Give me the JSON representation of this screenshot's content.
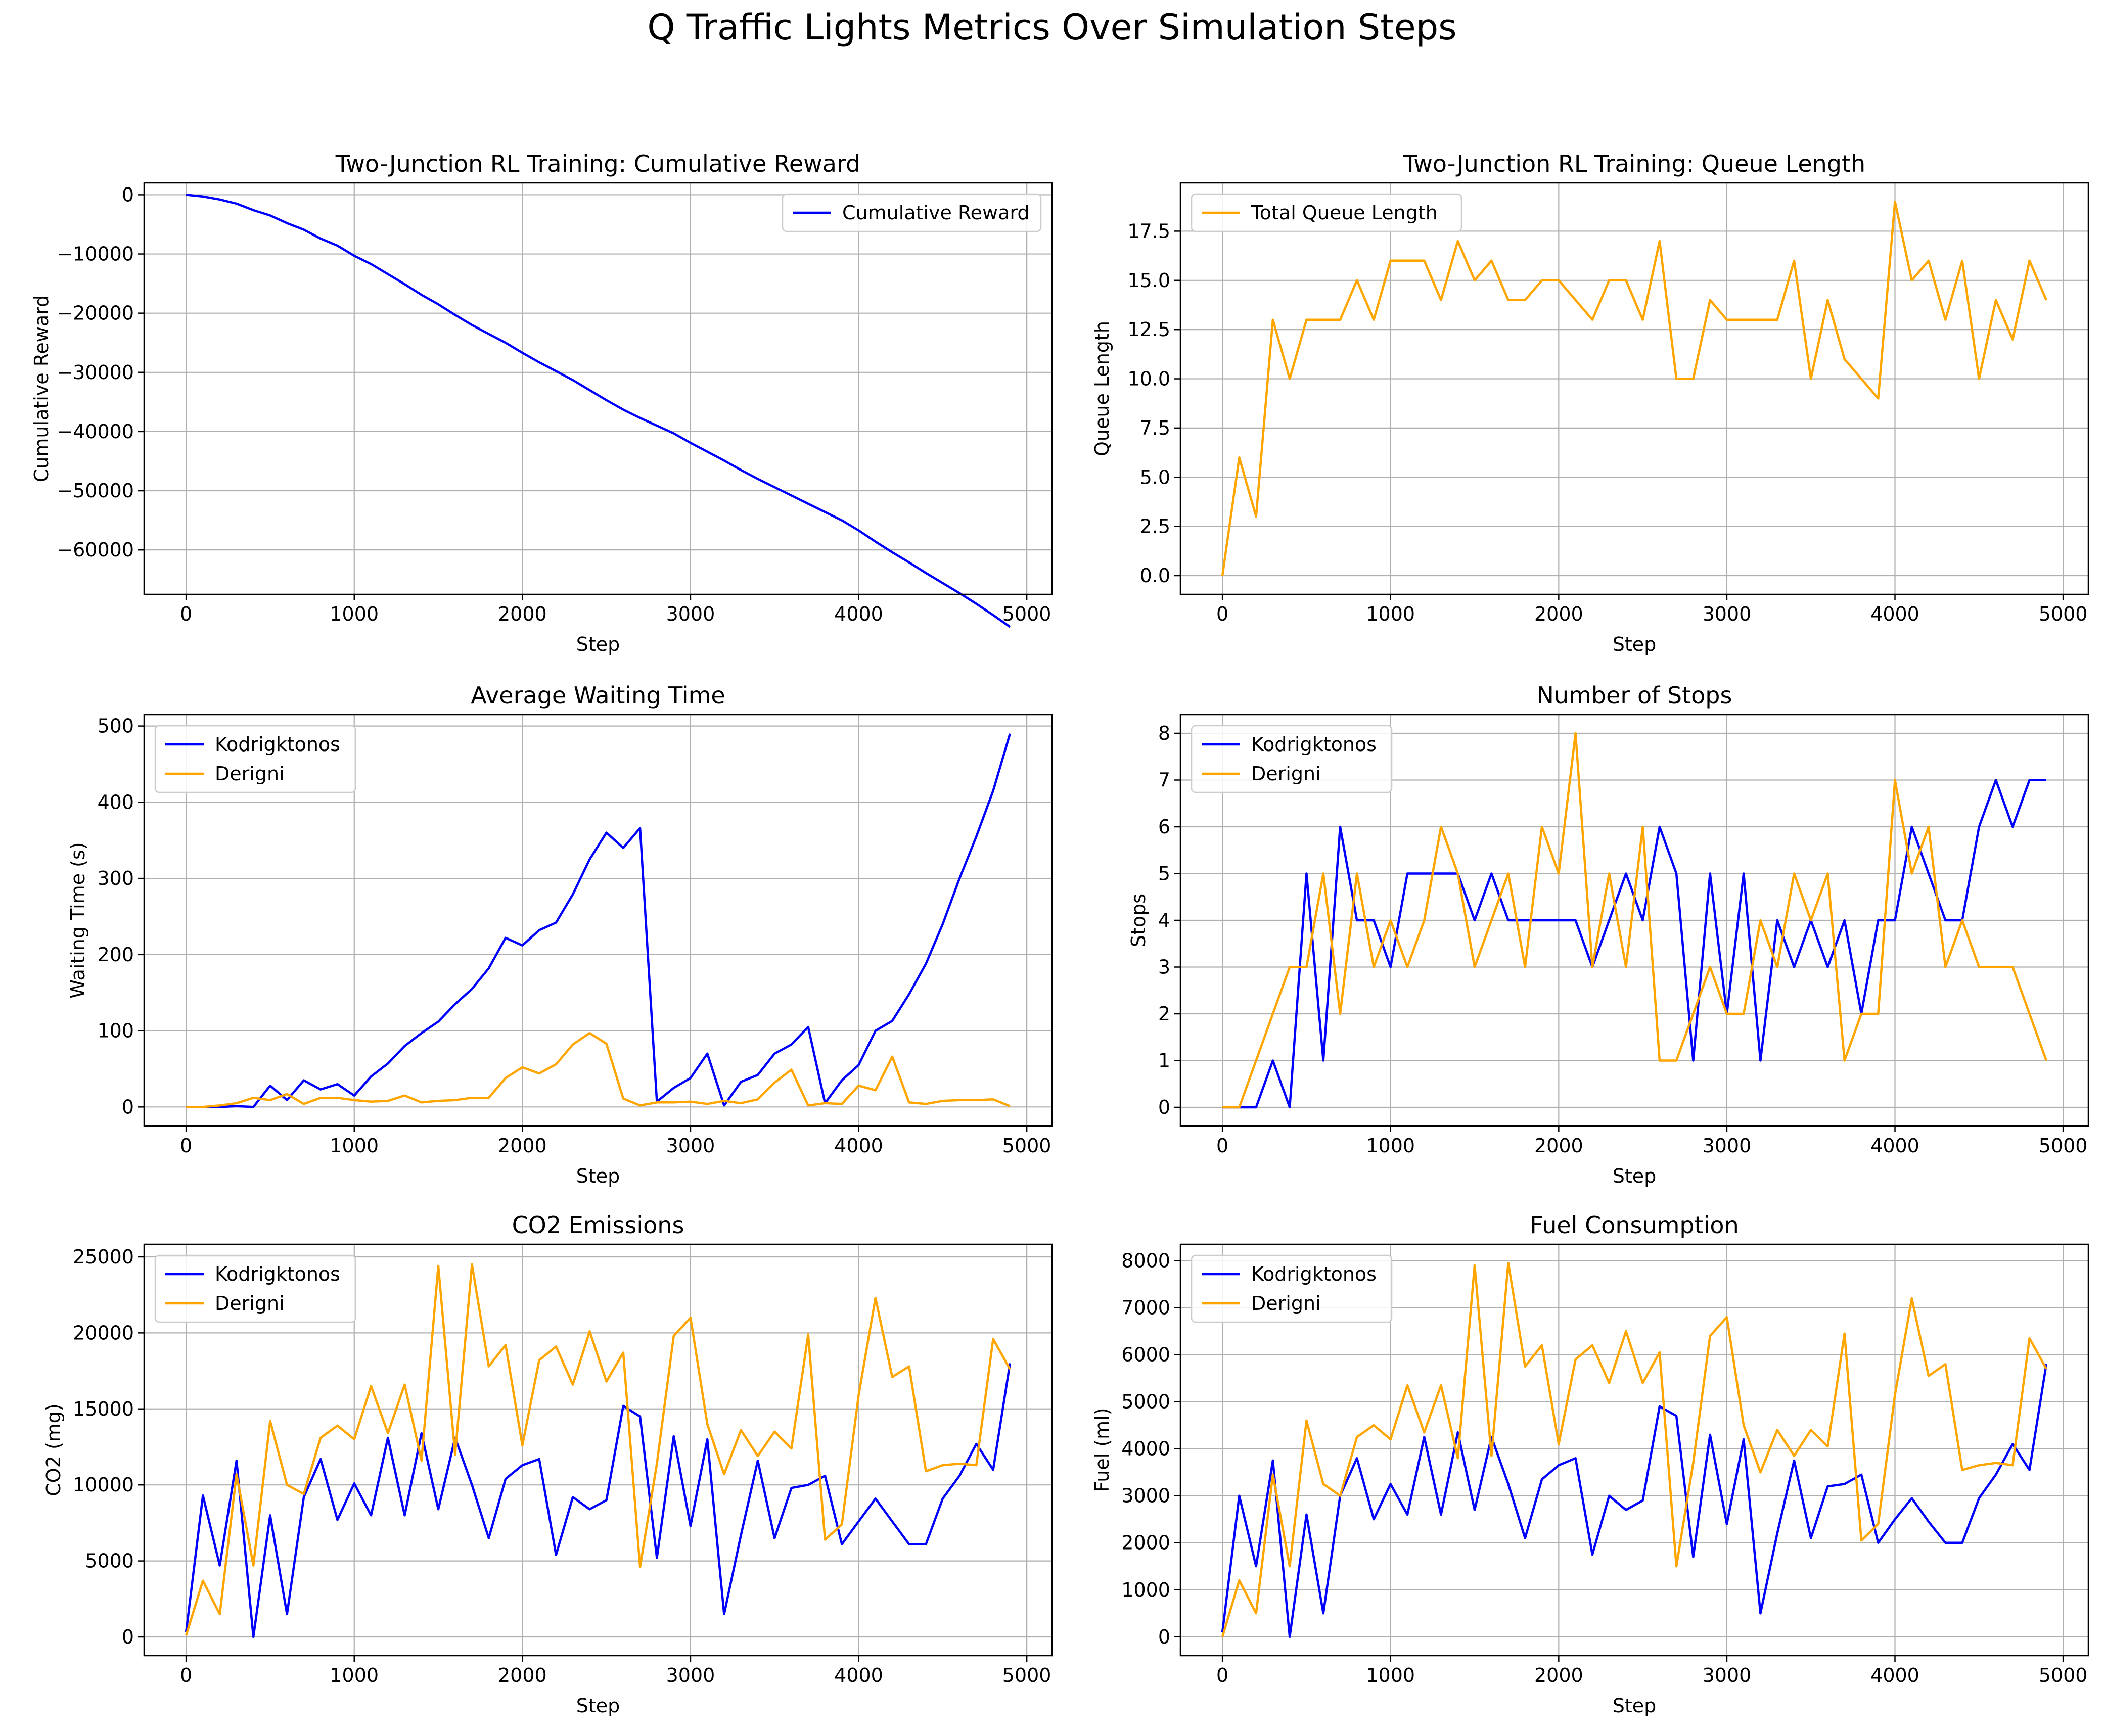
{
  "suptitle": "Q Traffic Lights Metrics Over Simulation Steps",
  "colors": {
    "kodrigktonos": "#0000ff",
    "derigni": "#ffa500",
    "grid": "#b0b0b0",
    "axes": "#000000"
  },
  "chart_data": [
    {
      "id": "cumulative-reward",
      "type": "line",
      "title": "Two-Junction RL Training: Cumulative Reward",
      "xlabel": "Step",
      "ylabel": "Cumulative Reward",
      "xlim": [
        -250,
        5150
      ],
      "ylim": [
        -67500,
        2000
      ],
      "xticks": [
        0,
        1000,
        2000,
        3000,
        4000,
        5000
      ],
      "yticks": [
        0,
        -10000,
        -20000,
        -30000,
        -40000,
        -50000,
        -60000
      ],
      "yticklabels": [
        "0",
        "−10000",
        "−20000",
        "−30000",
        "−40000",
        "−50000",
        "−60000"
      ],
      "grid": true,
      "legend_position": "upper-right",
      "x": [
        0,
        100,
        200,
        300,
        400,
        500,
        600,
        700,
        800,
        900,
        1000,
        1100,
        1200,
        1300,
        1400,
        1500,
        1600,
        1700,
        1800,
        1900,
        2000,
        2100,
        2200,
        2300,
        2400,
        2500,
        2600,
        2700,
        2800,
        2900,
        3000,
        3100,
        3200,
        3300,
        3400,
        3500,
        3600,
        3700,
        3800,
        3900,
        4000,
        4100,
        4200,
        4300,
        4400,
        4500,
        4600,
        4700,
        4800,
        4900
      ],
      "series": [
        {
          "name": "Cumulative Reward",
          "color": "#0000ff",
          "values": [
            0,
            -300,
            -800,
            -1500,
            -2600,
            -3500,
            -4800,
            -5900,
            -7400,
            -8600,
            -10300,
            -11700,
            -13400,
            -15100,
            -16900,
            -18500,
            -20300,
            -22000,
            -23500,
            -25000,
            -26700,
            -28300,
            -29800,
            -31300,
            -33000,
            -34700,
            -36300,
            -37700,
            -39000,
            -40300,
            -41900,
            -43400,
            -44900,
            -46500,
            -48000,
            -49400,
            -50800,
            -52200,
            -53600,
            -55000,
            -56700,
            -58600,
            -60400,
            -62100,
            -63900,
            -65600,
            -67300,
            -69100,
            -71000,
            -73000
          ]
        }
      ]
    },
    {
      "id": "queue-length",
      "type": "line",
      "title": "Two-Junction RL Training: Queue Length",
      "xlabel": "Step",
      "ylabel": "Queue Length",
      "xlim": [
        -250,
        5150
      ],
      "ylim": [
        -0.95,
        19.95
      ],
      "xticks": [
        0,
        1000,
        2000,
        3000,
        4000,
        5000
      ],
      "yticks": [
        0,
        2.5,
        5,
        7.5,
        10,
        12.5,
        15,
        17.5
      ],
      "yticklabels": [
        "0.0",
        "2.5",
        "5.0",
        "7.5",
        "10.0",
        "12.5",
        "15.0",
        "17.5"
      ],
      "grid": true,
      "legend_position": "upper-left",
      "x": [
        0,
        100,
        200,
        300,
        400,
        500,
        600,
        700,
        800,
        900,
        1000,
        1100,
        1200,
        1300,
        1400,
        1500,
        1600,
        1700,
        1800,
        1900,
        2000,
        2100,
        2200,
        2300,
        2400,
        2500,
        2600,
        2700,
        2800,
        2900,
        3000,
        3100,
        3200,
        3300,
        3400,
        3500,
        3600,
        3700,
        3800,
        3900,
        4000,
        4100,
        4200,
        4300,
        4400,
        4500,
        4600,
        4700,
        4800,
        4900
      ],
      "series": [
        {
          "name": "Total Queue Length",
          "color": "#ffa500",
          "values": [
            0,
            6,
            3,
            13,
            10,
            13,
            13,
            13,
            15,
            13,
            16,
            16,
            16,
            14,
            17,
            15,
            16,
            14,
            14,
            15,
            15,
            14,
            13,
            15,
            15,
            13,
            17,
            10,
            10,
            14,
            13,
            13,
            13,
            13,
            16,
            10,
            14,
            11,
            10,
            9,
            19,
            15,
            16,
            13,
            16,
            10,
            14,
            12,
            16,
            14
          ]
        }
      ]
    },
    {
      "id": "waiting-time",
      "type": "line",
      "title": "Average Waiting Time",
      "xlabel": "Step",
      "ylabel": "Waiting Time (s)",
      "xlim": [
        -250,
        5150
      ],
      "ylim": [
        -25,
        515
      ],
      "xticks": [
        0,
        1000,
        2000,
        3000,
        4000,
        5000
      ],
      "yticks": [
        0,
        100,
        200,
        300,
        400,
        500
      ],
      "yticklabels": [
        "0",
        "100",
        "200",
        "300",
        "400",
        "500"
      ],
      "grid": true,
      "legend_position": "upper-left",
      "x": [
        0,
        100,
        200,
        300,
        400,
        500,
        600,
        700,
        800,
        900,
        1000,
        1100,
        1200,
        1300,
        1400,
        1500,
        1600,
        1700,
        1800,
        1900,
        2000,
        2100,
        2200,
        2300,
        2400,
        2500,
        2600,
        2700,
        2800,
        2900,
        3000,
        3100,
        3200,
        3300,
        3400,
        3500,
        3600,
        3700,
        3800,
        3900,
        4000,
        4100,
        4200,
        4300,
        4400,
        4500,
        4600,
        4700,
        4800,
        4900
      ],
      "series": [
        {
          "name": "Kodrigktonos",
          "color": "#0000ff",
          "values": [
            0,
            0,
            0,
            1,
            0,
            28,
            9,
            35,
            23,
            30,
            15,
            40,
            57,
            80,
            97,
            112,
            135,
            155,
            182,
            222,
            212,
            232,
            242,
            279,
            325,
            360,
            340,
            366,
            7,
            25,
            38,
            70,
            2,
            33,
            42,
            70,
            82,
            105,
            5,
            35,
            55,
            100,
            113,
            148,
            188,
            240,
            300,
            355,
            415,
            490
          ]
        },
        {
          "name": "Derigni",
          "color": "#ffa500",
          "values": [
            0,
            0,
            2,
            5,
            12,
            9,
            17,
            4,
            12,
            12,
            9,
            7,
            8,
            15,
            6,
            8,
            9,
            12,
            12,
            38,
            52,
            44,
            56,
            82,
            97,
            83,
            11,
            2,
            6,
            6,
            7,
            4,
            8,
            5,
            10,
            32,
            49,
            2,
            5,
            4,
            28,
            22,
            66,
            6,
            4,
            8,
            9,
            9,
            10,
            1
          ]
        }
      ]
    },
    {
      "id": "number-of-stops",
      "type": "line",
      "title": "Number of Stops",
      "xlabel": "Step",
      "ylabel": "Stops",
      "xlim": [
        -250,
        5150
      ],
      "ylim": [
        -0.4,
        8.4
      ],
      "xticks": [
        0,
        1000,
        2000,
        3000,
        4000,
        5000
      ],
      "yticks": [
        0,
        1,
        2,
        3,
        4,
        5,
        6,
        7,
        8
      ],
      "yticklabels": [
        "0",
        "1",
        "2",
        "3",
        "4",
        "5",
        "6",
        "7",
        "8"
      ],
      "grid": true,
      "legend_position": "upper-left",
      "x": [
        0,
        100,
        200,
        300,
        400,
        500,
        600,
        700,
        800,
        900,
        1000,
        1100,
        1200,
        1300,
        1400,
        1500,
        1600,
        1700,
        1800,
        1900,
        2000,
        2100,
        2200,
        2300,
        2400,
        2500,
        2600,
        2700,
        2800,
        2900,
        3000,
        3100,
        3200,
        3300,
        3400,
        3500,
        3600,
        3700,
        3800,
        3900,
        4000,
        4100,
        4200,
        4300,
        4400,
        4500,
        4600,
        4700,
        4800,
        4900
      ],
      "series": [
        {
          "name": "Kodrigktonos",
          "color": "#0000ff",
          "values": [
            0,
            0,
            0,
            1,
            0,
            5,
            1,
            6,
            4,
            4,
            3,
            5,
            5,
            5,
            5,
            4,
            5,
            4,
            4,
            4,
            4,
            4,
            3,
            4,
            5,
            4,
            6,
            5,
            1,
            5,
            2,
            5,
            1,
            4,
            3,
            4,
            3,
            4,
            2,
            4,
            4,
            6,
            5,
            4,
            4,
            6,
            7,
            6,
            7,
            7
          ]
        },
        {
          "name": "Derigni",
          "color": "#ffa500",
          "values": [
            0,
            0,
            1,
            2,
            3,
            3,
            5,
            2,
            5,
            3,
            4,
            3,
            4,
            6,
            5,
            3,
            4,
            5,
            3,
            6,
            5,
            8,
            3,
            5,
            3,
            6,
            1,
            1,
            2,
            3,
            2,
            2,
            4,
            3,
            5,
            4,
            5,
            1,
            2,
            2,
            7,
            5,
            6,
            3,
            4,
            3,
            3,
            3,
            2,
            1
          ]
        }
      ]
    },
    {
      "id": "co2-emissions",
      "type": "line",
      "title": "CO2 Emissions",
      "xlabel": "Step",
      "ylabel": "CO2 (mg)",
      "xlim": [
        -250,
        5150
      ],
      "ylim": [
        -1230,
        25830
      ],
      "xticks": [
        0,
        1000,
        2000,
        3000,
        4000,
        5000
      ],
      "yticks": [
        0,
        5000,
        10000,
        15000,
        20000,
        25000
      ],
      "yticklabels": [
        "0",
        "5000",
        "10000",
        "15000",
        "20000",
        "25000"
      ],
      "grid": true,
      "legend_position": "upper-left",
      "x": [
        0,
        100,
        200,
        300,
        400,
        500,
        600,
        700,
        800,
        900,
        1000,
        1100,
        1200,
        1300,
        1400,
        1500,
        1600,
        1700,
        1800,
        1900,
        2000,
        2100,
        2200,
        2300,
        2400,
        2500,
        2600,
        2700,
        2800,
        2900,
        3000,
        3100,
        3200,
        3300,
        3400,
        3500,
        3600,
        3700,
        3800,
        3900,
        4000,
        4100,
        4200,
        4300,
        4400,
        4500,
        4600,
        4700,
        4800,
        4900
      ],
      "series": [
        {
          "name": "Kodrigktonos",
          "color": "#0000ff",
          "values": [
            300,
            9300,
            4700,
            11600,
            0,
            8000,
            1500,
            9200,
            11700,
            7700,
            10100,
            8000,
            13100,
            8000,
            13400,
            8400,
            13100,
            10000,
            6500,
            10400,
            11300,
            11700,
            5400,
            9200,
            8400,
            9000,
            15200,
            14500,
            5200,
            13200,
            7300,
            13000,
            1500,
            6700,
            11600,
            6500,
            9800,
            10000,
            10600,
            6100,
            7600,
            9100,
            7600,
            6100,
            6100,
            9100,
            10600,
            12700,
            11000,
            18000
          ]
        },
        {
          "name": "Derigni",
          "color": "#ffa500",
          "values": [
            100,
            3700,
            1500,
            10700,
            4700,
            14200,
            10000,
            9400,
            13100,
            13900,
            13000,
            16500,
            13400,
            16600,
            11600,
            24400,
            12000,
            24500,
            17800,
            19200,
            12600,
            18200,
            19100,
            16600,
            20100,
            16800,
            18700,
            4600,
            11400,
            19800,
            21000,
            14000,
            10700,
            13600,
            11900,
            13500,
            12400,
            19900,
            6400,
            7400,
            15900,
            22300,
            17100,
            17800,
            10900,
            11300,
            11400,
            11300,
            19600,
            17600
          ]
        }
      ]
    },
    {
      "id": "fuel-consumption",
      "type": "line",
      "title": "Fuel Consumption",
      "xlabel": "Step",
      "ylabel": "Fuel (ml)",
      "xlim": [
        -250,
        5150
      ],
      "ylim": [
        -400,
        8350
      ],
      "xticks": [
        0,
        1000,
        2000,
        3000,
        4000,
        5000
      ],
      "yticks": [
        0,
        1000,
        2000,
        3000,
        4000,
        5000,
        6000,
        7000,
        8000
      ],
      "yticklabels": [
        "0",
        "1000",
        "2000",
        "3000",
        "4000",
        "5000",
        "6000",
        "7000",
        "8000"
      ],
      "grid": true,
      "legend_position": "upper-left",
      "x": [
        0,
        100,
        200,
        300,
        400,
        500,
        600,
        700,
        800,
        900,
        1000,
        1100,
        1200,
        1300,
        1400,
        1500,
        1600,
        1700,
        1800,
        1900,
        2000,
        2100,
        2200,
        2300,
        2400,
        2500,
        2600,
        2700,
        2800,
        2900,
        3000,
        3100,
        3200,
        3300,
        3400,
        3500,
        3600,
        3700,
        3800,
        3900,
        4000,
        4100,
        4200,
        4300,
        4400,
        4500,
        4600,
        4700,
        4800,
        4900
      ],
      "series": [
        {
          "name": "Kodrigktonos",
          "color": "#0000ff",
          "values": [
            100,
            3000,
            1500,
            3750,
            0,
            2600,
            500,
            3000,
            3800,
            2500,
            3250,
            2600,
            4250,
            2600,
            4350,
            2700,
            4250,
            3250,
            2100,
            3350,
            3650,
            3800,
            1750,
            3000,
            2700,
            2900,
            4900,
            4700,
            1700,
            4300,
            2400,
            4200,
            500,
            2200,
            3750,
            2100,
            3200,
            3250,
            3450,
            2000,
            2500,
            2950,
            2450,
            2000,
            2000,
            2950,
            3450,
            4100,
            3550,
            5800
          ]
        },
        {
          "name": "Derigni",
          "color": "#ffa500",
          "values": [
            0,
            1200,
            500,
            3450,
            1500,
            4600,
            3250,
            3000,
            4250,
            4500,
            4200,
            5350,
            4350,
            5350,
            3800,
            7900,
            3850,
            7950,
            5750,
            6200,
            4100,
            5900,
            6200,
            5400,
            6500,
            5400,
            6050,
            1500,
            3700,
            6400,
            6800,
            4500,
            3500,
            4400,
            3850,
            4400,
            4050,
            6450,
            2050,
            2400,
            5150,
            7200,
            5550,
            5800,
            3550,
            3650,
            3700,
            3650,
            6350,
            5700
          ]
        }
      ]
    }
  ]
}
